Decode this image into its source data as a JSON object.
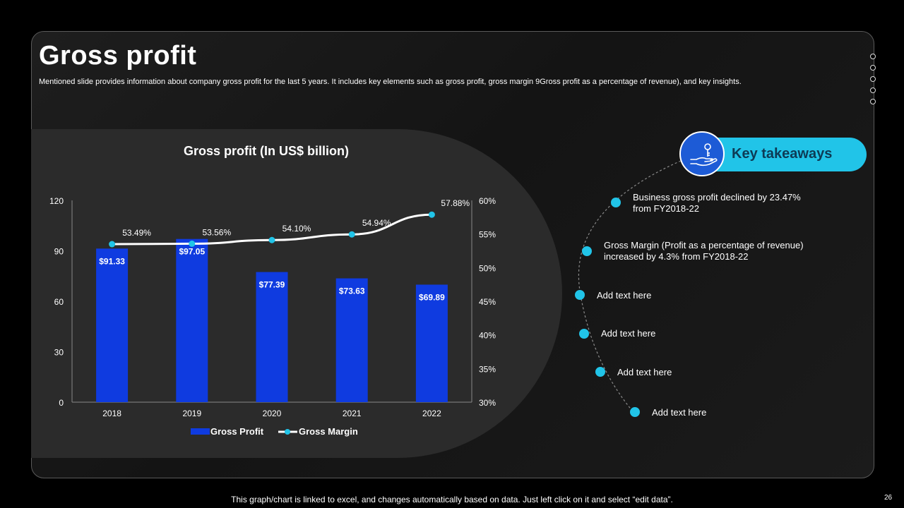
{
  "slide": {
    "title": "Gross profit",
    "subtitle": "Mentioned slide provides information about company gross profit for the last 5 years. It includes key elements such as gross profit, gross margin 9Gross profit as a percentage of revenue), and key insights.",
    "footer_note": "This graph/chart is linked to excel, and changes automatically based on data. Just left click on it and select “edit data”.",
    "page_number": "26"
  },
  "takeaways": {
    "heading": "Key takeaways",
    "icon": "hand-key-icon",
    "items": [
      "Business gross profit declined by 23.47% from FY2018-22",
      "Gross Margin (Profit as a percentage of revenue) increased by 4.3% from FY2018-22",
      "Add text here",
      "Add text here",
      "Add text here",
      "Add text here"
    ]
  },
  "colors": {
    "bar": "#0f3be0",
    "line": "#ffffff",
    "marker": "#21c4e8",
    "accent": "#21c4e8"
  },
  "chart_data": {
    "type": "bar",
    "title": "Gross profit (In US$ billion)",
    "categories": [
      "2018",
      "2019",
      "2020",
      "2021",
      "2022"
    ],
    "series": [
      {
        "name": "Gross Profit",
        "type": "bar",
        "axis": "left",
        "values": [
          91.33,
          97.05,
          77.39,
          73.63,
          69.89
        ],
        "labels": [
          "$91.33",
          "$97.05",
          "$77.39",
          "$73.63",
          "$69.89"
        ]
      },
      {
        "name": "Gross Margin",
        "type": "line",
        "axis": "right",
        "values": [
          53.49,
          53.56,
          54.1,
          54.94,
          57.88
        ],
        "labels": [
          "53.49%",
          "53.56%",
          "54.10%",
          "54.94%",
          "57.88%"
        ]
      }
    ],
    "y_left": {
      "range": [
        0,
        120
      ],
      "ticks": [
        "0",
        "30",
        "60",
        "90",
        "120"
      ]
    },
    "y_right": {
      "range": [
        30,
        60
      ],
      "ticks": [
        "30%",
        "35%",
        "40%",
        "45%",
        "50%",
        "55%",
        "60%"
      ]
    },
    "legend": [
      "Gross Profit",
      "Gross Margin"
    ],
    "legend_position": "bottom",
    "grid": false
  }
}
